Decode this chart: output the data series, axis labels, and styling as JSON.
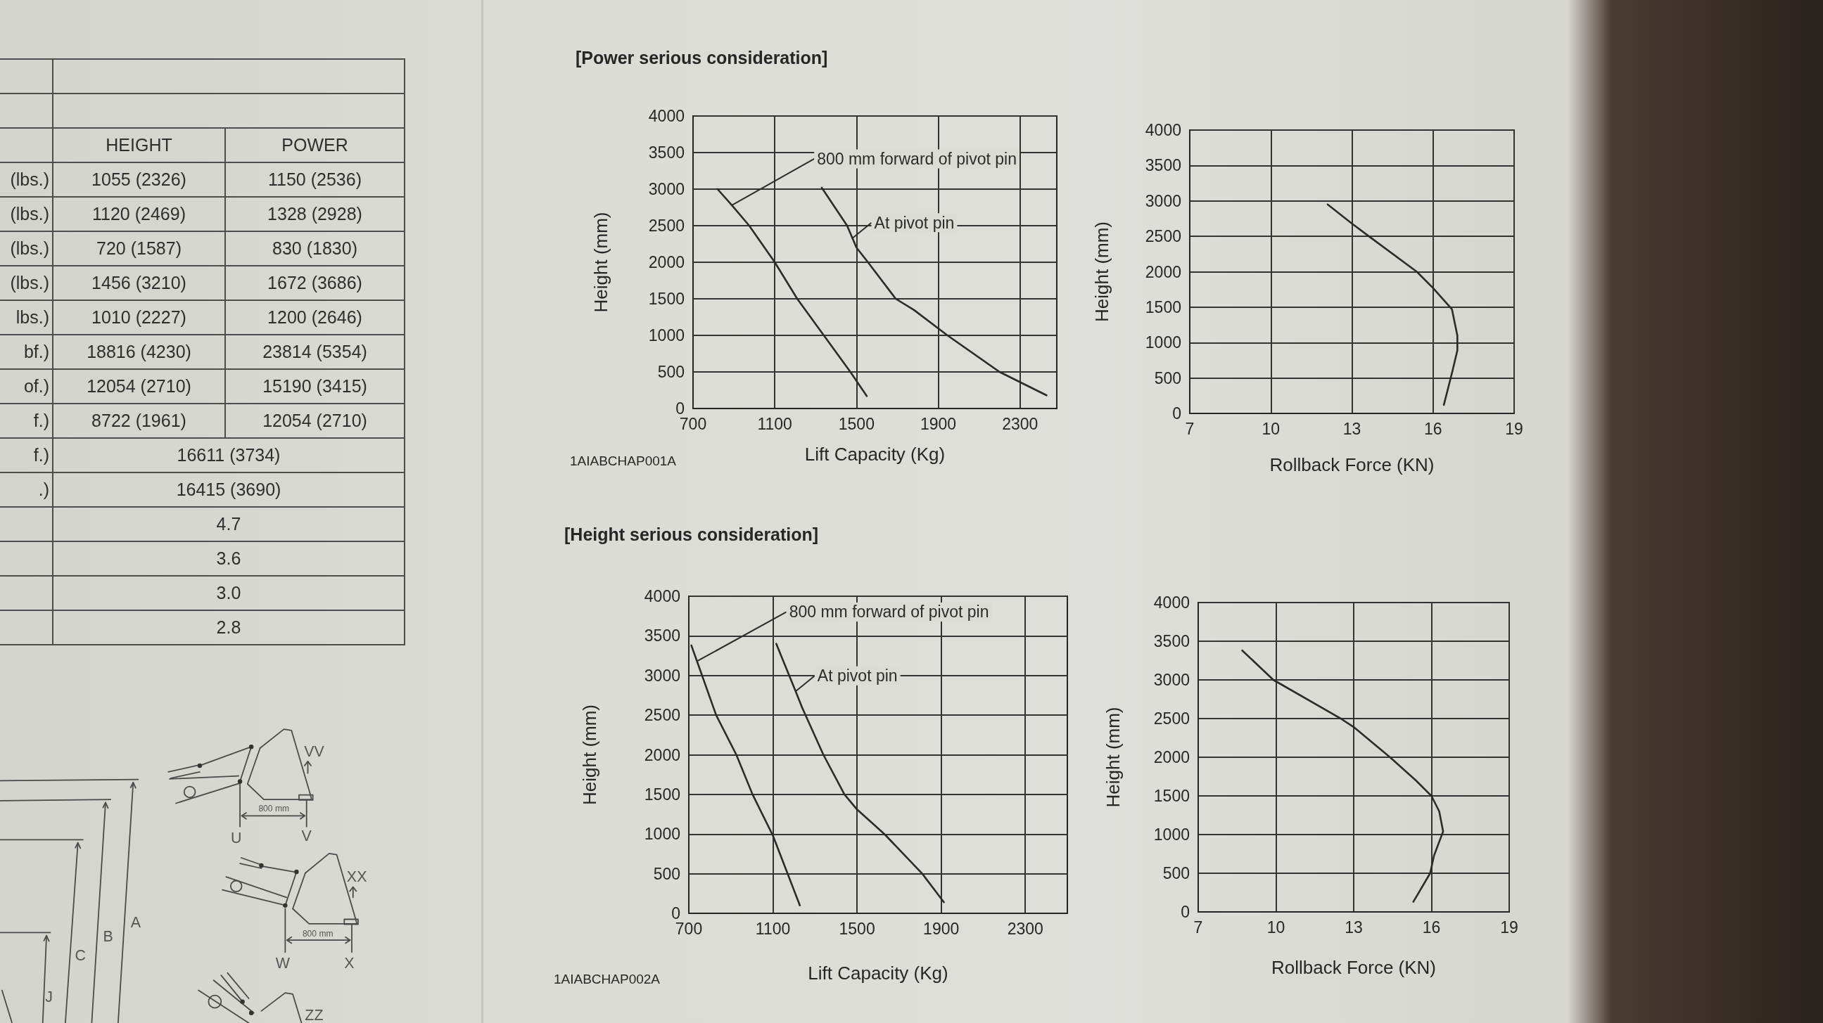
{
  "chart_data": [
    {
      "type": "other",
      "cell_labels": [
        [
          null,
          null
        ],
        [
          null,
          null
        ],
        [
          null,
          "HEIGHT",
          "POWER"
        ],
        [
          "(lbs.)",
          "1055 (2326)",
          "1150 (2536)"
        ],
        [
          "(lbs.)",
          "1120 (2469)",
          "1328 (2928)"
        ],
        [
          "(lbs.)",
          "720 (1587)",
          "830 (1830)"
        ],
        [
          "(lbs.)",
          "1456 (3210)",
          "1672 (3686)"
        ],
        [
          "lbs.)",
          "1010 (2227)",
          "1200 (2646)"
        ],
        [
          "bf.)",
          "18816 (4230)",
          "23814 (5354)"
        ],
        [
          "of.)",
          "12054 (2710)",
          "15190 (3415)"
        ],
        [
          "f.)",
          "8722 (1961)",
          "12054 (2710)"
        ],
        [
          "f.)",
          "16611 (3734)"
        ],
        [
          ".)",
          "16415 (3690)"
        ],
        [
          null,
          "4.7"
        ],
        [
          null,
          "3.6"
        ],
        [
          null,
          "3.0"
        ],
        [
          null,
          "2.8"
        ]
      ]
    },
    {
      "type": "other",
      "annotations": [
        "VV",
        "800 mm",
        "U",
        "V",
        "XX",
        "800 mm",
        "W",
        "X",
        "ZZ",
        "A",
        "B",
        "C",
        "J"
      ]
    },
    {
      "type": "line",
      "title": "[Power serious consideration]",
      "xlabel": "Lift Capacity (Kg)",
      "ylabel": "Height (mm)",
      "xlim": [
        700,
        2480
      ],
      "xticks": [
        700,
        1100,
        1500,
        1900,
        2300
      ],
      "ylim": [
        0,
        4000
      ],
      "yticks": [
        0,
        500,
        1000,
        1500,
        2000,
        2500,
        3000,
        3500,
        4000
      ],
      "grid": true,
      "annotations": [
        "1AIABCHAP001A"
      ],
      "series": [
        {
          "name": "800 mm forward of pivot pin",
          "color": "#2b2b2b",
          "x": [
            820,
            890,
            975,
            1100,
            1210,
            1340,
            1470,
            1550
          ],
          "values": [
            3000,
            2780,
            2500,
            2000,
            1500,
            1000,
            500,
            170
          ]
        },
        {
          "name": "At pivot pin",
          "color": "#2b2b2b",
          "x": [
            1330,
            1454,
            1480,
            1500,
            1556,
            1692,
            1780,
            1945,
            2200,
            2430
          ],
          "values": [
            3020,
            2500,
            2330,
            2200,
            2000,
            1500,
            1350,
            1000,
            500,
            180
          ]
        }
      ]
    },
    {
      "type": "line",
      "xlabel": "Rollback Force (KN)",
      "ylabel": "Height (mm)",
      "xlim": [
        7,
        19
      ],
      "xticks": [
        7,
        10,
        13,
        16,
        19
      ],
      "ylim": [
        0,
        4000
      ],
      "yticks": [
        0,
        500,
        1000,
        1500,
        2000,
        2500,
        3000,
        3500,
        4000
      ],
      "grid": true,
      "series": [
        {
          "color": "#2b2b2b",
          "x": [
            12.1,
            13,
            13.7,
            15.4,
            16,
            16.7,
            16.9,
            16.9,
            16.7,
            16.4
          ],
          "values": [
            2950,
            2680,
            2480,
            2000,
            1770,
            1470,
            1100,
            890,
            570,
            120
          ]
        }
      ]
    },
    {
      "type": "line",
      "title": "[Height serious consideration]",
      "xlabel": "Lift Capacity (Kg)",
      "ylabel": "Height (mm)",
      "xlim": [
        700,
        2500
      ],
      "xticks": [
        700,
        1100,
        1500,
        1900,
        2300
      ],
      "ylim": [
        0,
        4000
      ],
      "yticks": [
        0,
        500,
        1000,
        1500,
        2000,
        2500,
        3000,
        3500,
        4000
      ],
      "grid": true,
      "annotations": [
        "1AIABCHAP002A"
      ],
      "series": [
        {
          "name": "800 mm forward of pivot pin",
          "color": "#2b2b2b",
          "x": [
            712,
            739,
            830,
            926,
            1003,
            1100,
            1228
          ],
          "values": [
            3380,
            3180,
            2500,
            2000,
            1500,
            980,
            100
          ]
        },
        {
          "name": "At pivot pin",
          "color": "#2b2b2b",
          "x": [
            1116,
            1208,
            1238,
            1340,
            1440,
            1500,
            1630,
            1810,
            1913
          ],
          "values": [
            3400,
            2800,
            2600,
            2000,
            1500,
            1310,
            1000,
            500,
            140
          ]
        }
      ]
    },
    {
      "type": "line",
      "xlabel": "Rollback Force (KN)",
      "ylabel": "Height (mm)",
      "xlim": [
        7,
        19
      ],
      "xticks": [
        7,
        10,
        13,
        16,
        19
      ],
      "ylim": [
        0,
        4000
      ],
      "yticks": [
        0,
        500,
        1000,
        1500,
        2000,
        2500,
        3000,
        3500,
        4000
      ],
      "grid": true,
      "series": [
        {
          "color": "#2b2b2b",
          "x": [
            8.7,
            9.9,
            12.5,
            13,
            14.4,
            15.4,
            16,
            16.3,
            16.45,
            16.1,
            15.95,
            15.3
          ],
          "values": [
            3380,
            3000,
            2500,
            2390,
            2000,
            1700,
            1500,
            1300,
            1040,
            730,
            500,
            130
          ]
        }
      ]
    }
  ]
}
